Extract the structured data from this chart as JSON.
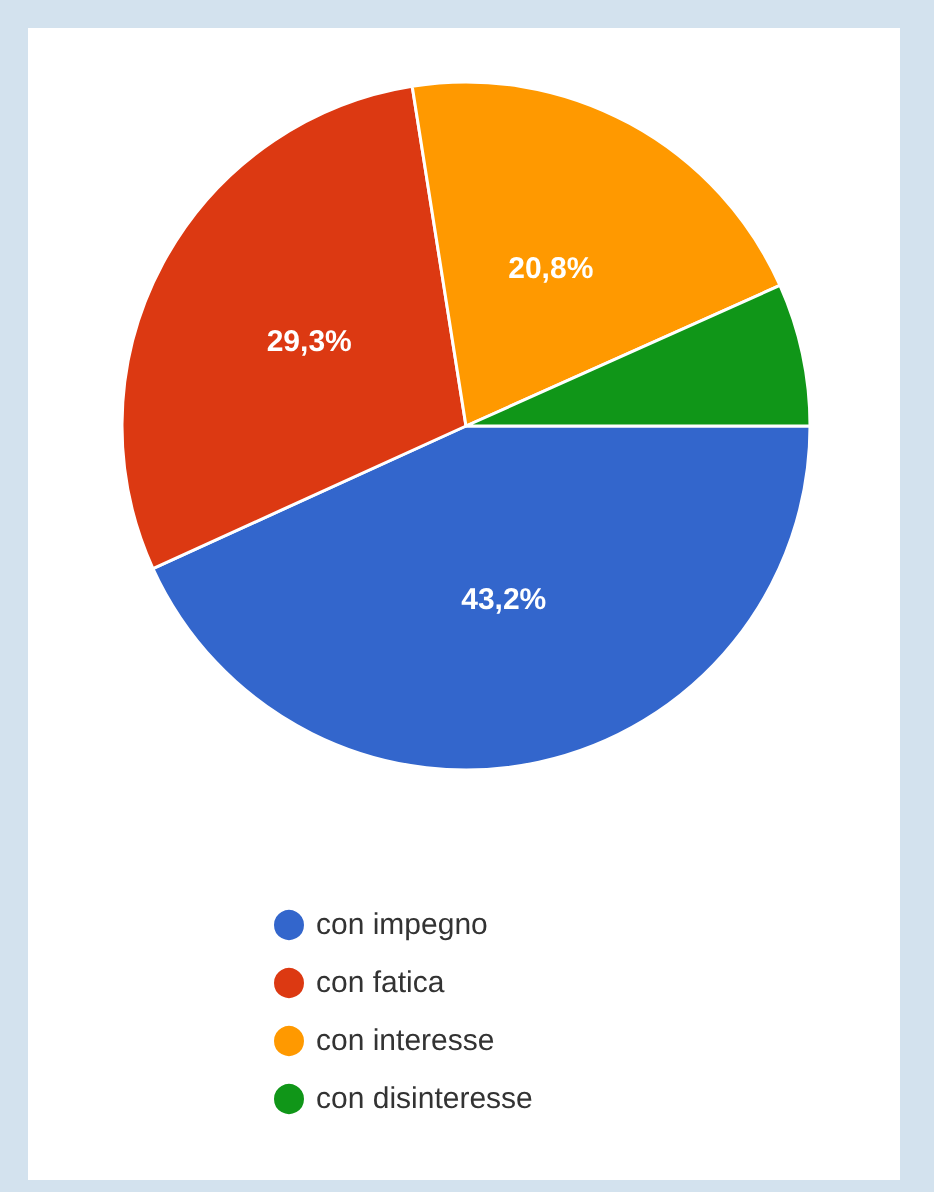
{
  "chart_data": {
    "type": "pie",
    "categories": [
      "con impegno",
      "con fatica",
      "con interesse",
      "con disinteresse"
    ],
    "values": [
      43.2,
      29.3,
      20.8,
      6.7
    ],
    "value_labels": [
      "43,2%",
      "29,3%",
      "20,8%",
      null
    ],
    "colors": [
      "#3366cc",
      "#dc3912",
      "#ff9900",
      "#109618"
    ],
    "legend": "bottom"
  }
}
